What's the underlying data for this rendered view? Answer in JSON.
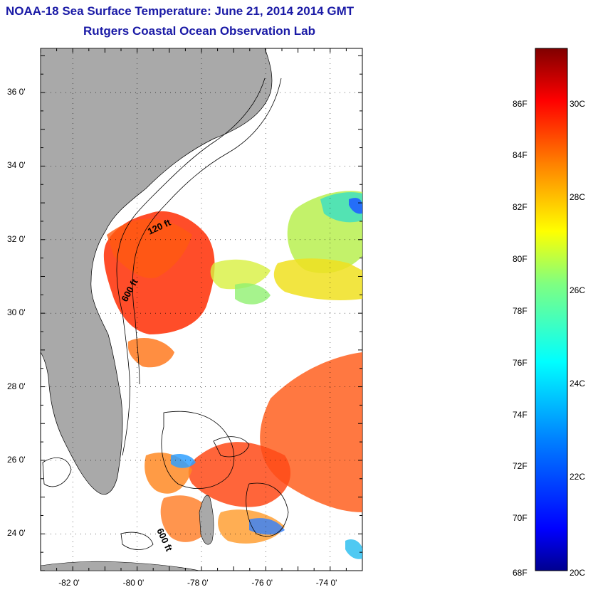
{
  "title": "NOAA-18 Sea Surface Temperature:  June 21, 2014 2014 GMT",
  "subtitle": "Rutgers Coastal Ocean Observation Lab",
  "map": {
    "lat_labels": [
      "36 0'",
      "34 0'",
      "32 0'",
      "30 0'",
      "28 0'",
      "26 0'",
      "24 0'"
    ],
    "lon_labels": [
      "-82 0'",
      "-80 0'",
      "-78 0'",
      "-76 0'",
      "-74 0'"
    ],
    "lat_range": [
      23.0,
      37.2
    ],
    "lon_range": [
      -83.0,
      -73.0
    ],
    "grid": "dotted",
    "land_color": "#a9a9a9",
    "contours": [
      "120 ft",
      "600 ft",
      "600 ft"
    ]
  },
  "colorbar": {
    "f_labels": [
      "86F",
      "84F",
      "82F",
      "80F",
      "78F",
      "76F",
      "74F",
      "72F",
      "70F",
      "68F"
    ],
    "c_labels": [
      "30C",
      "28C",
      "26C",
      "24C",
      "22C",
      "20C"
    ],
    "range_c": [
      20,
      31.2
    ],
    "colors": [
      "#00008f",
      "#0000ff",
      "#0080ff",
      "#00ffff",
      "#80ff80",
      "#ffff00",
      "#ff8000",
      "#ff0000",
      "#800000"
    ]
  }
}
